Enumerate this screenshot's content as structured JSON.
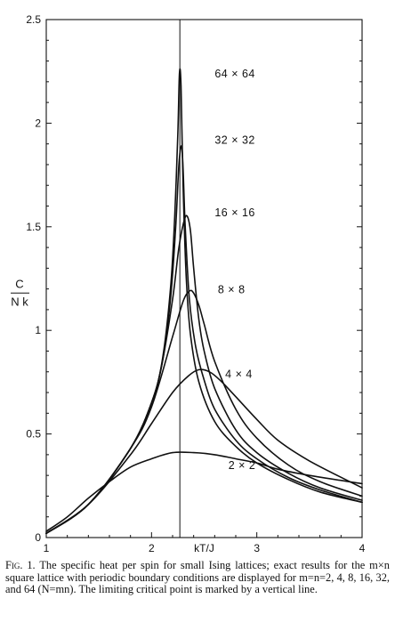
{
  "chart_data": {
    "type": "line",
    "x_axis_label": "kT/J",
    "y_axis_label": {
      "numerator": "C",
      "denominator": "N k"
    },
    "xlim": [
      1,
      4
    ],
    "ylim": [
      0,
      2.5
    ],
    "x_ticks": [
      1,
      2,
      3,
      4
    ],
    "x_tick_labels": [
      "1",
      "2",
      "3",
      "4"
    ],
    "y_ticks": [
      0,
      0.5,
      1,
      1.5,
      2,
      2.5
    ],
    "y_tick_labels": [
      "0",
      "0.5",
      "1",
      "1.5",
      "2",
      "2.5"
    ],
    "critical_point_x": 2.269,
    "grid": false,
    "series": [
      {
        "name": "64 × 64",
        "x": [
          1.0,
          1.4,
          1.8,
          2.0,
          2.1,
          2.18,
          2.22,
          2.25,
          2.265,
          2.28,
          2.3,
          2.33,
          2.37,
          2.45,
          2.6,
          2.8,
          3.0,
          3.3,
          3.6,
          4.0
        ],
        "y": [
          0.02,
          0.16,
          0.43,
          0.65,
          0.85,
          1.2,
          1.55,
          1.95,
          2.24,
          2.18,
          1.7,
          1.25,
          0.98,
          0.75,
          0.56,
          0.44,
          0.36,
          0.28,
          0.22,
          0.17
        ]
      },
      {
        "name": "32 × 32",
        "x": [
          1.0,
          1.4,
          1.8,
          2.0,
          2.1,
          2.18,
          2.23,
          2.26,
          2.285,
          2.3,
          2.32,
          2.36,
          2.42,
          2.5,
          2.6,
          2.8,
          3.0,
          3.3,
          3.6,
          4.0
        ],
        "y": [
          0.02,
          0.16,
          0.43,
          0.65,
          0.84,
          1.15,
          1.5,
          1.8,
          1.89,
          1.78,
          1.5,
          1.15,
          0.92,
          0.76,
          0.62,
          0.47,
          0.38,
          0.29,
          0.23,
          0.17
        ]
      },
      {
        "name": "16 × 16",
        "x": [
          1.0,
          1.4,
          1.8,
          2.0,
          2.1,
          2.2,
          2.26,
          2.31,
          2.34,
          2.37,
          2.4,
          2.45,
          2.5,
          2.6,
          2.8,
          3.0,
          3.3,
          3.6,
          4.0
        ],
        "y": [
          0.02,
          0.16,
          0.43,
          0.65,
          0.84,
          1.15,
          1.4,
          1.53,
          1.55,
          1.48,
          1.3,
          1.05,
          0.9,
          0.72,
          0.52,
          0.41,
          0.31,
          0.24,
          0.18
        ]
      },
      {
        "name": "8 × 8",
        "x": [
          1.0,
          1.4,
          1.8,
          2.0,
          2.2,
          2.3,
          2.36,
          2.4,
          2.45,
          2.5,
          2.6,
          2.8,
          3.0,
          3.3,
          3.6,
          4.0
        ],
        "y": [
          0.02,
          0.16,
          0.43,
          0.63,
          0.97,
          1.14,
          1.19,
          1.18,
          1.12,
          1.03,
          0.85,
          0.62,
          0.48,
          0.35,
          0.27,
          0.2
        ]
      },
      {
        "name": "4 × 4",
        "x": [
          1.0,
          1.4,
          1.8,
          2.0,
          2.2,
          2.35,
          2.45,
          2.55,
          2.65,
          2.8,
          3.0,
          3.2,
          3.5,
          4.0
        ],
        "y": [
          0.02,
          0.16,
          0.4,
          0.55,
          0.7,
          0.78,
          0.81,
          0.8,
          0.76,
          0.68,
          0.57,
          0.47,
          0.37,
          0.24
        ]
      },
      {
        "name": "2 × 2",
        "x": [
          1.0,
          1.2,
          1.4,
          1.6,
          1.8,
          2.0,
          2.2,
          2.4,
          2.6,
          2.8,
          3.0,
          3.2,
          3.5,
          4.0
        ],
        "y": [
          0.03,
          0.1,
          0.19,
          0.27,
          0.34,
          0.38,
          0.41,
          0.41,
          0.4,
          0.38,
          0.36,
          0.33,
          0.3,
          0.26
        ]
      }
    ],
    "series_label_positions": [
      {
        "name": "64 × 64",
        "x": 2.6,
        "y": 2.22
      },
      {
        "name": "32 × 32",
        "x": 2.6,
        "y": 1.9
      },
      {
        "name": "16 × 16",
        "x": 2.6,
        "y": 1.55
      },
      {
        "name": "8 × 8",
        "x": 2.63,
        "y": 1.18
      },
      {
        "name": "4 × 4",
        "x": 2.7,
        "y": 0.77
      },
      {
        "name": "2 × 2",
        "x": 2.73,
        "y": 0.33
      }
    ]
  },
  "caption": {
    "fig_label": "Fig. 1.",
    "text": "The specific heat per spin for small Ising lattices; exact results for the m×n square lattice with periodic boundary conditions are displayed for m=n=2, 4, 8, 16, 32, and 64 (N=mn). The limiting critical point is marked by a vertical line."
  }
}
